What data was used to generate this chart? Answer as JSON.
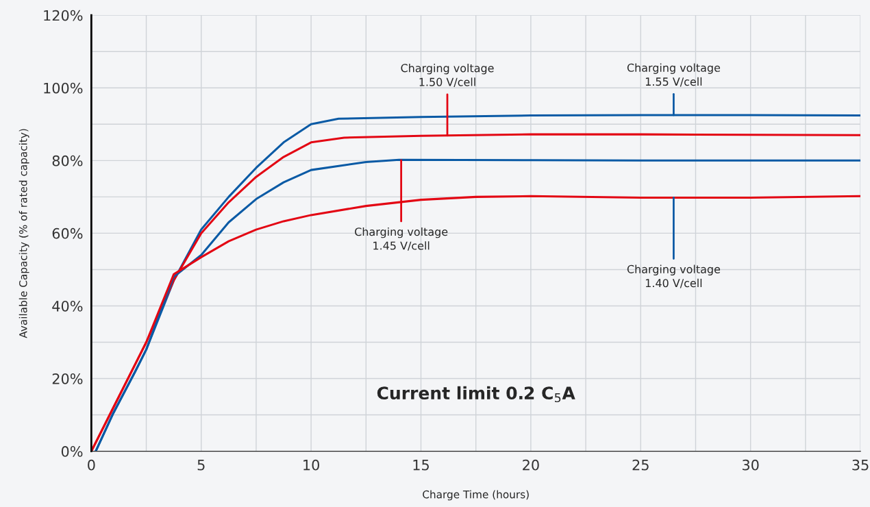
{
  "chart_data": {
    "type": "line",
    "xlabel": "Charge Time (hours)",
    "ylabel": "Available Capacity (% of rated capacity)",
    "xlim": [
      0,
      35
    ],
    "ylim": [
      0,
      120
    ],
    "xticks": [
      0,
      {
        "value": 2.5,
        "label": null
      },
      5,
      {
        "value": 7.5,
        "label": null
      },
      10,
      {
        "value": 12.5,
        "label": null
      },
      15,
      {
        "value": 17.5,
        "label": null
      },
      20,
      {
        "value": 22.5,
        "label": null
      },
      25,
      {
        "value": 27.5,
        "label": null
      },
      30,
      {
        "value": 32.5,
        "label": null
      },
      35
    ],
    "yticks": [
      {
        "value": 0,
        "label": "0%"
      },
      {
        "value": 10,
        "label": null
      },
      {
        "value": 20,
        "label": "20%"
      },
      {
        "value": 30,
        "label": null
      },
      {
        "value": 40,
        "label": "40%"
      },
      {
        "value": 50,
        "label": null
      },
      {
        "value": 60,
        "label": "60%"
      },
      {
        "value": 70,
        "label": null
      },
      {
        "value": 80,
        "label": "80%"
      },
      {
        "value": 90,
        "label": null
      },
      {
        "value": 100,
        "label": "100%"
      },
      {
        "value": 110,
        "label": null
      },
      {
        "value": 120,
        "label": "120%"
      }
    ],
    "grid": true,
    "line_style": "solid",
    "series": [
      {
        "color": "#0a5aa5",
        "x": [
          0.2,
          1,
          2,
          2.5,
          3.75,
          5,
          6.25,
          7.5,
          8.75,
          10,
          11.25,
          15,
          20,
          25,
          30,
          35
        ],
        "values": [
          0,
          10.5,
          22,
          28,
          47,
          61,
          70,
          78,
          85,
          90,
          91.5,
          92,
          92.4,
          92.5,
          92.5,
          92.4
        ]
      },
      {
        "color": "#e30613",
        "x": [
          0,
          1,
          2,
          2.5,
          3.75,
          5,
          6.25,
          7.5,
          8.75,
          10,
          11.5,
          15,
          20,
          25,
          30,
          35
        ],
        "values": [
          0,
          12,
          24,
          30,
          47,
          60,
          68.5,
          75.5,
          81,
          85,
          86.3,
          86.8,
          87.2,
          87.2,
          87.1,
          87
        ]
      },
      {
        "color": "#0a5aa5",
        "x": [
          0.2,
          1,
          2,
          2.5,
          3.75,
          5,
          6.25,
          7.5,
          8.75,
          10,
          12.5,
          14,
          20,
          25,
          30,
          35
        ],
        "values": [
          0,
          10.5,
          22,
          28,
          48,
          54,
          63,
          69.4,
          74,
          77.4,
          79.6,
          80.2,
          80.1,
          80,
          80,
          80
        ]
      },
      {
        "color": "#e30613",
        "x": [
          0,
          1,
          2,
          2.5,
          3.75,
          5,
          6.25,
          7.5,
          8.75,
          10,
          12.5,
          15,
          17.5,
          20,
          25,
          30,
          35
        ],
        "values": [
          0,
          12,
          24,
          30,
          48.7,
          53.4,
          57.8,
          61,
          63.3,
          65,
          67.5,
          69.2,
          70,
          70.2,
          69.8,
          69.8,
          70.2
        ]
      }
    ],
    "annotations": [
      {
        "text": "Charging voltage\n1.50 V/cell",
        "x": 16.2,
        "y": 86.9
      },
      {
        "text": "Charging voltage\n1.55 V/cell",
        "x": 26.5,
        "y": 92.5
      },
      {
        "text": "Charging voltage\n1.45 V/cell",
        "x": 14.1,
        "y": 80.1
      },
      {
        "text": "Charging voltage\n1.40 V/cell",
        "x": 26.5,
        "y": 69.8
      },
      "Current limit 0.2 C$_{5}$A"
    ]
  }
}
